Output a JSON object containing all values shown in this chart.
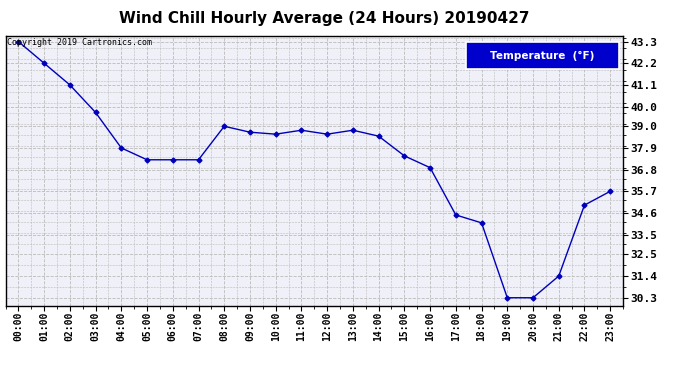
{
  "title": "Wind Chill Hourly Average (24 Hours) 20190427",
  "copyright_text": "Copyright 2019 Cartronics.com",
  "legend_label": "Temperature  (°F)",
  "hours": [
    0,
    1,
    2,
    3,
    4,
    5,
    6,
    7,
    8,
    9,
    10,
    11,
    12,
    13,
    14,
    15,
    16,
    17,
    18,
    19,
    20,
    21,
    22,
    23
  ],
  "x_labels": [
    "00:00",
    "01:00",
    "02:00",
    "03:00",
    "04:00",
    "05:00",
    "06:00",
    "07:00",
    "08:00",
    "09:00",
    "10:00",
    "11:00",
    "12:00",
    "13:00",
    "14:00",
    "15:00",
    "16:00",
    "17:00",
    "18:00",
    "19:00",
    "20:00",
    "21:00",
    "22:00",
    "23:00"
  ],
  "temperatures": [
    43.3,
    42.2,
    41.1,
    39.7,
    37.9,
    37.3,
    37.3,
    37.3,
    39.0,
    38.7,
    38.6,
    38.8,
    38.6,
    38.8,
    38.5,
    37.5,
    36.9,
    34.5,
    34.1,
    30.3,
    30.3,
    31.4,
    35.0,
    35.7
  ],
  "ylim_min": 29.9,
  "ylim_max": 43.6,
  "yticks": [
    30.3,
    31.4,
    32.5,
    33.5,
    34.6,
    35.7,
    36.8,
    37.9,
    39.0,
    40.0,
    41.1,
    42.2,
    43.3
  ],
  "line_color": "#0000bb",
  "marker_color": "#0000bb",
  "grid_color": "#bbbbbb",
  "bg_color": "#ffffff",
  "plot_bg_color": "#f0f0f8",
  "title_fontsize": 11,
  "legend_bg": "#0000cc",
  "legend_text_color": "#ffffff"
}
